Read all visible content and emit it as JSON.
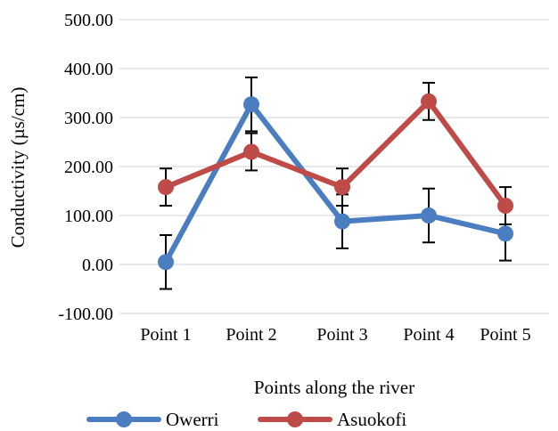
{
  "chart_data": {
    "type": "line",
    "title": "",
    "xlabel": "Points along the river",
    "ylabel": "Conductivity (µs/cm)",
    "categories": [
      "Point 1",
      "Point 2",
      "Point 3",
      "Point 4",
      "Point 5"
    ],
    "ylim": [
      -100,
      500
    ],
    "yticks": [
      -100,
      0,
      100,
      200,
      300,
      400,
      500
    ],
    "ytick_labels": [
      "-100.00",
      "0.00",
      "100.00",
      "200.00",
      "300.00",
      "400.00",
      "500.00"
    ],
    "grid": true,
    "legend_position": "bottom",
    "series": [
      {
        "name": "Owerri",
        "color": "#4A7EC1",
        "values": [
          5,
          327,
          88,
          100,
          63
        ],
        "error": [
          55,
          55,
          55,
          55,
          55
        ]
      },
      {
        "name": "Asuokofi",
        "color": "#BE4B48",
        "values": [
          158,
          230,
          158,
          333,
          120
        ],
        "error": [
          38,
          38,
          38,
          38,
          38
        ]
      }
    ]
  }
}
